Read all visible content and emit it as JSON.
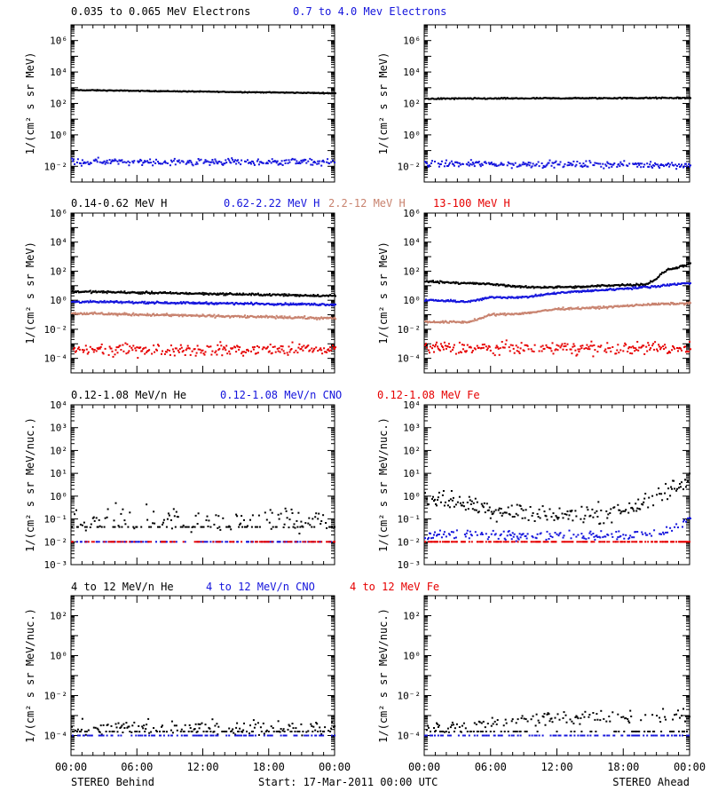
{
  "colors": {
    "black": "#000000",
    "blue": "#1414dc",
    "brown": "#c8826e",
    "red": "#e60000"
  },
  "footer": {
    "left_label": "STEREO Behind",
    "center_label": "Start: 17-Mar-2011 00:00 UTC",
    "right_label": "STEREO Ahead"
  },
  "time_ticks": [
    "00:00",
    "06:00",
    "12:00",
    "18:00",
    "00:00"
  ],
  "chart_data": [
    {
      "type": "scatter",
      "row": "electrons",
      "panel": "STEREO Behind",
      "ylabel": "1/(cm² s sr MeV)",
      "yscale": "log",
      "ylim_exp": [
        -3,
        7
      ],
      "ytick_exps": [
        -2,
        0,
        2,
        4,
        6
      ],
      "xlim_hours": [
        0,
        24
      ],
      "series": [
        {
          "name": "0.035 to 0.065 MeV Electrons",
          "color": "black",
          "log_start": 2.85,
          "log_end": 2.65,
          "spread": 0.02,
          "density": 1.0
        },
        {
          "name": "0.7 to 4.0 Mev Electrons",
          "color": "blue",
          "log_start": -1.7,
          "log_end": -1.75,
          "spread": 0.15,
          "density": 0.8
        }
      ]
    },
    {
      "type": "scatter",
      "row": "electrons",
      "panel": "STEREO Ahead",
      "ylabel": "1/(cm² s sr MeV)",
      "yscale": "log",
      "ylim_exp": [
        -3,
        7
      ],
      "ytick_exps": [
        -2,
        0,
        2,
        4,
        6
      ],
      "xlim_hours": [
        0,
        24
      ],
      "series": [
        {
          "name": "0.035 to 0.065 MeV Electrons",
          "color": "black",
          "log_start": 2.3,
          "log_end": 2.35,
          "spread": 0.03,
          "density": 1.0
        },
        {
          "name": "0.7 to 4.0 Mev Electrons",
          "color": "blue",
          "log_start": -1.85,
          "log_end": -1.9,
          "spread": 0.15,
          "density": 0.8
        }
      ]
    },
    {
      "type": "scatter",
      "row": "protons",
      "panel": "STEREO Behind",
      "ylabel": "1/(cm² s sr MeV)",
      "yscale": "log",
      "ylim_exp": [
        -5,
        6
      ],
      "ytick_exps": [
        -4,
        -2,
        0,
        2,
        4,
        6
      ],
      "xlim_hours": [
        0,
        24
      ],
      "series": [
        {
          "name": "0.14-0.62 MeV H",
          "color": "black",
          "log_start": 0.6,
          "log_end": 0.3,
          "spread": 0.05,
          "density": 1.0
        },
        {
          "name": "0.62-2.22 MeV H",
          "color": "blue",
          "log_start": -0.1,
          "log_end": -0.3,
          "spread": 0.05,
          "density": 1.0
        },
        {
          "name": "2.2-12 MeV H",
          "color": "brown",
          "log_start": -0.9,
          "log_end": -1.25,
          "spread": 0.06,
          "density": 1.0
        },
        {
          "name": "13-100 MeV H",
          "color": "red",
          "log_start": -3.4,
          "log_end": -3.4,
          "spread": 0.3,
          "density": 0.8
        }
      ]
    },
    {
      "type": "scatter",
      "row": "protons",
      "panel": "STEREO Ahead",
      "ylabel": "1/(cm² s sr MeV)",
      "yscale": "log",
      "ylim_exp": [
        -5,
        6
      ],
      "ytick_exps": [
        -4,
        -2,
        0,
        2,
        4,
        6
      ],
      "xlim_hours": [
        0,
        24
      ],
      "series": [
        {
          "name": "0.14-0.62 MeV H",
          "color": "black",
          "points": [
            [
              0,
              1.3
            ],
            [
              6,
              1.1
            ],
            [
              9,
              0.9
            ],
            [
              14,
              0.9
            ],
            [
              16,
              1.0
            ],
            [
              20,
              1.1
            ],
            [
              21,
              1.5
            ],
            [
              21.5,
              1.9
            ],
            [
              22,
              2.1
            ],
            [
              24,
              2.5
            ]
          ],
          "spread": 0.05,
          "density": 1.0
        },
        {
          "name": "0.62-2.22 MeV H",
          "color": "blue",
          "points": [
            [
              0,
              0.0
            ],
            [
              4,
              -0.1
            ],
            [
              6,
              0.2
            ],
            [
              9,
              0.2
            ],
            [
              12,
              0.5
            ],
            [
              16,
              0.7
            ],
            [
              20,
              0.9
            ],
            [
              24,
              1.2
            ]
          ],
          "spread": 0.05,
          "density": 1.0
        },
        {
          "name": "2.2-12 MeV H",
          "color": "brown",
          "points": [
            [
              0,
              -1.5
            ],
            [
              4,
              -1.5
            ],
            [
              6,
              -1.0
            ],
            [
              9,
              -0.9
            ],
            [
              12,
              -0.6
            ],
            [
              16,
              -0.5
            ],
            [
              20,
              -0.3
            ],
            [
              24,
              -0.2
            ]
          ],
          "spread": 0.05,
          "density": 1.0
        },
        {
          "name": "13-100 MeV H",
          "color": "red",
          "log_start": -3.3,
          "log_end": -3.3,
          "spread": 0.3,
          "density": 0.8
        }
      ]
    },
    {
      "type": "scatter",
      "row": "heavy_low",
      "panel": "STEREO Behind",
      "ylabel": "1/(cm² s sr MeV/nuc.)",
      "yscale": "log",
      "ylim_exp": [
        -3,
        4
      ],
      "ytick_exps": [
        -3,
        -2,
        -1,
        0,
        1,
        2,
        3,
        4
      ],
      "xlim_hours": [
        0,
        24
      ],
      "series": [
        {
          "name": "0.12-1.08 MeV/n He",
          "color": "black",
          "log_start": -1.0,
          "log_end": -1.0,
          "spread": 0.4,
          "density": 0.55,
          "floor": -1.35
        },
        {
          "name": "0.12-1.08 MeV/n CNO",
          "color": "blue",
          "log_start": -2.0,
          "log_end": -2.0,
          "spread": 0.0,
          "density": 0.35
        },
        {
          "name": "0.12-1.08 MeV Fe",
          "color": "red",
          "log_start": -2.0,
          "log_end": -2.0,
          "spread": 0.0,
          "density": 0.25
        }
      ]
    },
    {
      "type": "scatter",
      "row": "heavy_low",
      "panel": "STEREO Ahead",
      "ylabel": "1/(cm² s sr MeV/nuc.)",
      "yscale": "log",
      "ylim_exp": [
        -3,
        4
      ],
      "ytick_exps": [
        -3,
        -2,
        -1,
        0,
        1,
        2,
        3,
        4
      ],
      "xlim_hours": [
        0,
        24
      ],
      "series": [
        {
          "name": "0.12-1.08 MeV/n He",
          "color": "black",
          "points": [
            [
              0,
              -0.1
            ],
            [
              3,
              -0.3
            ],
            [
              6,
              -0.6
            ],
            [
              10,
              -0.8
            ],
            [
              15,
              -0.8
            ],
            [
              18,
              -0.6
            ],
            [
              20,
              -0.3
            ],
            [
              22,
              0.2
            ],
            [
              24,
              0.8
            ]
          ],
          "spread": 0.3,
          "density": 0.7
        },
        {
          "name": "0.12-1.08 MeV/n CNO",
          "color": "blue",
          "points": [
            [
              0,
              -1.7
            ],
            [
              20,
              -1.7
            ],
            [
              22,
              -1.5
            ],
            [
              24,
              -1.0
            ]
          ],
          "spread": 0.15,
          "density": 0.5
        },
        {
          "name": "0.12-1.08 MeV Fe",
          "color": "red",
          "log_start": -2.0,
          "log_end": -2.0,
          "spread": 0.0,
          "density": 0.5
        }
      ]
    },
    {
      "type": "scatter",
      "row": "heavy_high",
      "panel": "STEREO Behind",
      "ylabel": "1/(cm² s sr MeV/nuc.)",
      "yscale": "log",
      "ylim_exp": [
        -5,
        3
      ],
      "ytick_exps": [
        -4,
        -2,
        0,
        2
      ],
      "xlim_hours": [
        0,
        24
      ],
      "series": [
        {
          "name": "4 to 12 MeV/n He",
          "color": "black",
          "log_start": -3.6,
          "log_end": -3.6,
          "spread": 0.25,
          "density": 0.6,
          "floor": -3.8
        },
        {
          "name": "4 to 12 MeV/n CNO",
          "color": "blue",
          "log_start": -4.0,
          "log_end": -4.0,
          "spread": 0.0,
          "density": 0.35
        },
        {
          "name": "4 to 12 MeV Fe",
          "color": "red",
          "log_start": -5.0,
          "log_end": -5.0,
          "spread": 0.0,
          "density": 0.0
        }
      ]
    },
    {
      "type": "scatter",
      "row": "heavy_high",
      "panel": "STEREO Ahead",
      "ylabel": "1/(cm² s sr MeV/nuc.)",
      "yscale": "log",
      "ylim_exp": [
        -5,
        3
      ],
      "ytick_exps": [
        -4,
        -2,
        0,
        2
      ],
      "xlim_hours": [
        0,
        24
      ],
      "series": [
        {
          "name": "4 to 12 MeV/n He",
          "color": "black",
          "points": [
            [
              0,
              -3.7
            ],
            [
              4,
              -3.5
            ],
            [
              8,
              -3.3
            ],
            [
              12,
              -3.1
            ],
            [
              18,
              -3.1
            ],
            [
              24,
              -3.0
            ]
          ],
          "spread": 0.25,
          "density": 0.6,
          "floor": -3.8
        },
        {
          "name": "4 to 12 MeV/n CNO",
          "color": "blue",
          "log_start": -4.0,
          "log_end": -4.0,
          "spread": 0.0,
          "density": 0.3
        },
        {
          "name": "4 to 12 MeV Fe",
          "color": "red",
          "log_start": -5.0,
          "log_end": -5.0,
          "spread": 0.0,
          "density": 0.0
        }
      ]
    }
  ]
}
